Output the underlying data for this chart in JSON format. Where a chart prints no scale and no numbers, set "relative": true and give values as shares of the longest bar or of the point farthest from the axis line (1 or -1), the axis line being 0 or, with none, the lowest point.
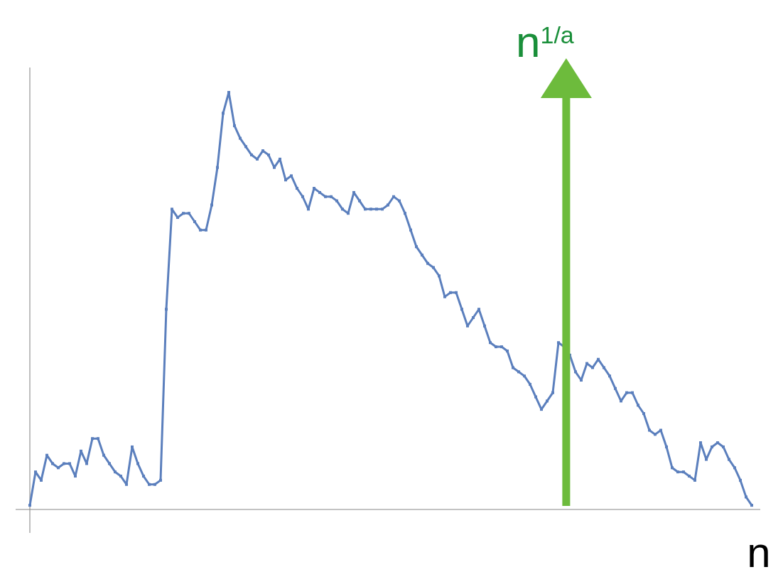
{
  "chart_data": {
    "type": "line",
    "relative": true,
    "xlabel": "n",
    "annotations": [
      "n$^{1/a}$"
    ],
    "marker": "square",
    "line_style": "solid",
    "categories": [
      null,
      null,
      null,
      null,
      null,
      null,
      null,
      null,
      null,
      null,
      null,
      null,
      null,
      null,
      null,
      null,
      null,
      null,
      null,
      null,
      null,
      null,
      null,
      null,
      null,
      null,
      null,
      null,
      null,
      null,
      null,
      null,
      null,
      null,
      null,
      null,
      null,
      null,
      null,
      null,
      null,
      null,
      null,
      null,
      null,
      null,
      null,
      null,
      null,
      null,
      null,
      null,
      null,
      null,
      null,
      null,
      null,
      null,
      null,
      null,
      null,
      null,
      null,
      null,
      null,
      null,
      null,
      null,
      null,
      null,
      null,
      null,
      null,
      null,
      null,
      null,
      null,
      null,
      null,
      null,
      null,
      null,
      null,
      null,
      null,
      null,
      null,
      null,
      null,
      null,
      null,
      null,
      null,
      null,
      null,
      null,
      null,
      null,
      null,
      null,
      null,
      null,
      null,
      null,
      null,
      null,
      null,
      null,
      null,
      null,
      null,
      null,
      null,
      null,
      null,
      null,
      null,
      null,
      null,
      null,
      null,
      null,
      null,
      null,
      null,
      null,
      null,
      null
    ],
    "series": [
      {
        "color": "#5b7fbd",
        "values": [
          0.01,
          0.09,
          0.07,
          0.13,
          0.11,
          0.1,
          0.11,
          0.11,
          0.08,
          0.14,
          0.11,
          0.17,
          0.17,
          0.13,
          0.11,
          0.09,
          0.08,
          0.06,
          0.15,
          0.11,
          0.08,
          0.06,
          0.06,
          0.07,
          0.48,
          0.72,
          0.7,
          0.71,
          0.71,
          0.69,
          0.67,
          0.67,
          0.73,
          0.82,
          0.95,
          1.0,
          0.92,
          0.89,
          0.87,
          0.85,
          0.84,
          0.86,
          0.85,
          0.82,
          0.84,
          0.79,
          0.8,
          0.77,
          0.75,
          0.72,
          0.77,
          0.76,
          0.75,
          0.75,
          0.74,
          0.72,
          0.71,
          0.76,
          0.74,
          0.72,
          0.72,
          0.72,
          0.72,
          0.73,
          0.75,
          0.74,
          0.71,
          0.67,
          0.63,
          0.61,
          0.59,
          0.58,
          0.56,
          0.51,
          0.52,
          0.52,
          0.48,
          0.44,
          0.46,
          0.48,
          0.44,
          0.4,
          0.39,
          0.39,
          0.38,
          0.34,
          0.33,
          0.32,
          0.3,
          0.27,
          0.24,
          0.26,
          0.28,
          0.4,
          0.39,
          0.37,
          0.33,
          0.31,
          0.35,
          0.34,
          0.36,
          0.34,
          0.32,
          0.29,
          0.26,
          0.28,
          0.28,
          0.25,
          0.23,
          0.19,
          0.18,
          0.19,
          0.15,
          0.1,
          0.09,
          0.09,
          0.08,
          0.07,
          0.16,
          0.12,
          0.15,
          0.16,
          0.15,
          0.12,
          0.1,
          0.07,
          0.03,
          0.01
        ]
      }
    ]
  }
}
